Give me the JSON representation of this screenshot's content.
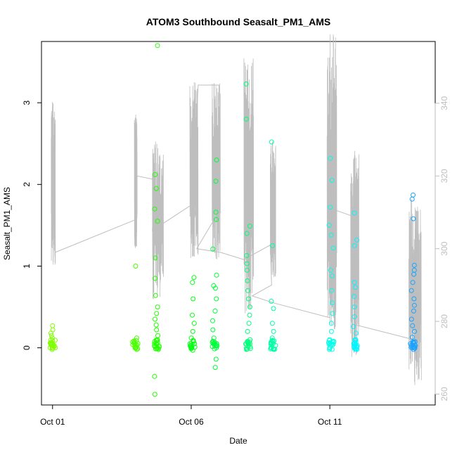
{
  "chart_data": {
    "type": "scatter",
    "title": "ATOM3 Southbound Seasalt_PM1_AMS",
    "xlabel": "Date",
    "ylabel": "Seasalt_PM1_AMS",
    "x_ticks": [
      "Oct 01",
      "Oct 06",
      "Oct 11"
    ],
    "x_range_days": [
      0.6,
      14.8
    ],
    "y_left_range": [
      -0.7,
      3.75
    ],
    "y_left_ticks": [
      0,
      1,
      2,
      3
    ],
    "y_right_range": [
      257,
      357
    ],
    "y_right_ticks": [
      260,
      280,
      300,
      320,
      340
    ],
    "grid": false,
    "colors": {
      "points_gradient": [
        "#7fff00",
        "#00ff3a",
        "#00ffd0",
        "#00ffff",
        "#1e90ff"
      ],
      "secondary_line": "#bebebe"
    },
    "series": [
      {
        "kind": "points",
        "clusters": [
          {
            "day": 1.0,
            "color": "#80ff00",
            "values": [
              0.27,
              0.22,
              0.18,
              0.15,
              0.12,
              0.09,
              0.06,
              0.03,
              0.0,
              -0.02
            ]
          },
          {
            "day": 3.98,
            "color": "#48ff00",
            "values": [
              1.0,
              0.12,
              0.06,
              0.03,
              0.0,
              -0.02
            ]
          },
          {
            "day": 4.75,
            "color": "#22ff00",
            "values": [
              3.7,
              2.12,
              1.95,
              1.7,
              1.55,
              1.1,
              0.85,
              0.64,
              0.5,
              0.42,
              0.35,
              0.28,
              0.22,
              0.15,
              0.1,
              0.05,
              0.0,
              -0.02,
              -0.35,
              -0.57
            ]
          },
          {
            "day": 6.05,
            "color": "#05ff12",
            "values": [
              0.86,
              0.8,
              0.6,
              0.4,
              0.3,
              0.2,
              0.12,
              0.05,
              0.0,
              -0.03
            ]
          },
          {
            "day": 6.85,
            "color": "#00ff3a",
            "values": [
              2.3,
              2.04,
              1.66,
              1.57,
              1.21,
              0.89,
              0.76,
              0.73,
              0.6,
              0.45,
              0.33,
              0.22,
              0.12,
              0.05,
              0.0,
              -0.14,
              -0.24
            ]
          },
          {
            "day": 8.05,
            "color": "#00ff7a",
            "values": [
              3.23,
              2.8,
              1.49,
              1.4,
              1.13,
              1.03,
              0.95,
              0.82,
              0.7,
              0.6,
              0.5,
              0.4,
              0.3,
              0.2,
              0.1,
              0.05,
              0.0,
              -0.02
            ]
          },
          {
            "day": 8.95,
            "color": "#00ffa6",
            "values": [
              2.52,
              1.25,
              0.57,
              0.48,
              0.3,
              0.2,
              0.12,
              0.06,
              0.0,
              -0.02
            ]
          },
          {
            "day": 11.05,
            "color": "#00ffea",
            "values": [
              2.32,
              2.05,
              1.72,
              1.5,
              1.38,
              1.22,
              0.95,
              0.88,
              0.7,
              0.55,
              0.42,
              0.3,
              0.2,
              0.1,
              0.05,
              0.0,
              -0.02
            ]
          },
          {
            "day": 11.9,
            "color": "#00f6ff",
            "values": [
              1.65,
              1.32,
              1.25,
              0.8,
              0.74,
              0.63,
              0.5,
              0.38,
              0.26,
              0.18,
              0.1,
              0.05,
              0.0,
              -0.02
            ]
          },
          {
            "day": 14.0,
            "color": "#1aa3ff",
            "values": [
              1.87,
              1.82,
              1.58,
              1.01,
              0.95,
              0.9,
              0.8,
              0.7,
              0.6,
              0.52,
              0.45,
              0.35,
              0.27,
              0.2,
              0.13,
              0.07,
              0.03,
              0.0,
              -0.02
            ]
          }
        ]
      },
      {
        "kind": "line",
        "axis": "right",
        "segments": [
          {
            "day_start": 0.95,
            "day_end": 1.1,
            "min": 295,
            "max": 341
          },
          {
            "day_start": 3.95,
            "day_end": 4.05,
            "min": 300,
            "max": 337
          },
          {
            "day_start": 4.6,
            "day_end": 5.0,
            "min": 286,
            "max": 330
          },
          {
            "day_start": 5.95,
            "day_end": 6.25,
            "min": 297,
            "max": 346
          },
          {
            "day_start": 6.75,
            "day_end": 7.05,
            "min": 297,
            "max": 346
          },
          {
            "day_start": 7.9,
            "day_end": 8.25,
            "min": 282,
            "max": 353
          },
          {
            "day_start": 8.85,
            "day_end": 9.05,
            "min": 292,
            "max": 330
          },
          {
            "day_start": 10.9,
            "day_end": 11.25,
            "min": 277,
            "max": 359
          },
          {
            "day_start": 11.75,
            "day_end": 12.05,
            "min": 270,
            "max": 327
          },
          {
            "day_start": 13.85,
            "day_end": 14.3,
            "min": 262,
            "max": 314
          }
        ],
        "path": [
          [
            1.1,
            299
          ],
          [
            4.0,
            308
          ],
          [
            4.05,
            320
          ],
          [
            4.7,
            319
          ],
          [
            4.6,
            305
          ],
          [
            6.2,
            313
          ],
          [
            6.0,
            304
          ],
          [
            6.25,
            345
          ],
          [
            7.0,
            345
          ],
          [
            6.9,
            309
          ],
          [
            6.2,
            300
          ],
          [
            7.05,
            299
          ],
          [
            7.9,
            297
          ],
          [
            8.85,
            301
          ],
          [
            8.9,
            290
          ],
          [
            8.2,
            287
          ],
          [
            9.0,
            285
          ],
          [
            11.0,
            281
          ],
          [
            11.05,
            311
          ],
          [
            11.8,
            309
          ],
          [
            11.95,
            279
          ],
          [
            14.0,
            275
          ]
        ]
      }
    ]
  }
}
